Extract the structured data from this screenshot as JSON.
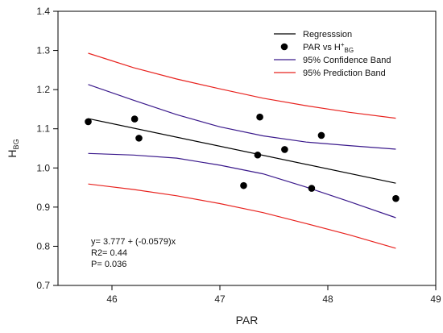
{
  "chart_data": {
    "type": "scatter",
    "title": "",
    "xlabel": "PAR",
    "ylabel": "H",
    "ylabel_sub": "BG",
    "xlim": [
      45.5,
      49
    ],
    "ylim": [
      0.7,
      1.4
    ],
    "x_ticks": [
      46,
      47,
      48,
      49
    ],
    "x_tick_labels": [
      "46",
      "47",
      "48",
      "49"
    ],
    "y_ticks": [
      0.7,
      0.8,
      0.9,
      1.0,
      1.1,
      1.2,
      1.3,
      1.4
    ],
    "y_tick_labels": [
      "0.7",
      "0.8",
      "0.9",
      "1.0",
      "1.1",
      "1.2",
      "1.3",
      "1.4"
    ],
    "grid": false,
    "legend_position": "top-right",
    "legend": [
      {
        "label": "Regresssion",
        "kind": "line",
        "color": "#000000"
      },
      {
        "label": "PAR vs H",
        "label_sup": "+",
        "label_sub": "BG",
        "kind": "marker",
        "color": "#000000"
      },
      {
        "label": "95% Confidence Band",
        "kind": "line",
        "color": "#3b1a8c"
      },
      {
        "label": "95% Prediction Band",
        "kind": "line",
        "color": "#e8231f"
      }
    ],
    "series": [
      {
        "name": "PAR vs H+BG",
        "kind": "scatter",
        "color": "#000000",
        "points": [
          [
            45.78,
            1.118
          ],
          [
            46.21,
            1.125
          ],
          [
            46.25,
            1.076
          ],
          [
            47.22,
            0.955
          ],
          [
            47.35,
            1.033
          ],
          [
            47.37,
            1.13
          ],
          [
            47.6,
            1.047
          ],
          [
            47.85,
            0.948
          ],
          [
            47.94,
            1.083
          ],
          [
            48.63,
            0.922
          ]
        ]
      },
      {
        "name": "Regresssion",
        "kind": "line",
        "color": "#000000",
        "points": [
          [
            45.78,
            1.126
          ],
          [
            48.63,
            0.961
          ]
        ]
      },
      {
        "name": "95% Confidence Band",
        "kind": "line",
        "color": "#3b1a8c",
        "points": [
          [
            45.78,
            1.213
          ],
          [
            46.2,
            1.173
          ],
          [
            46.6,
            1.136
          ],
          [
            47.0,
            1.105
          ],
          [
            47.4,
            1.082
          ],
          [
            47.8,
            1.066
          ],
          [
            48.2,
            1.057
          ],
          [
            48.63,
            1.048
          ]
        ]
      },
      {
        "name": "95% Confidence Band",
        "kind": "line",
        "color": "#3b1a8c",
        "points": [
          [
            45.78,
            1.037
          ],
          [
            46.2,
            1.033
          ],
          [
            46.6,
            1.025
          ],
          [
            47.0,
            1.007
          ],
          [
            47.4,
            0.985
          ],
          [
            47.8,
            0.951
          ],
          [
            48.2,
            0.914
          ],
          [
            48.63,
            0.873
          ]
        ]
      },
      {
        "name": "95% Prediction Band",
        "kind": "line",
        "color": "#e8231f",
        "points": [
          [
            45.78,
            1.293
          ],
          [
            46.2,
            1.256
          ],
          [
            46.6,
            1.227
          ],
          [
            47.0,
            1.202
          ],
          [
            47.4,
            1.178
          ],
          [
            47.8,
            1.159
          ],
          [
            48.2,
            1.142
          ],
          [
            48.63,
            1.127
          ]
        ]
      },
      {
        "name": "95% Prediction Band",
        "kind": "line",
        "color": "#e8231f",
        "points": [
          [
            45.78,
            0.959
          ],
          [
            46.2,
            0.945
          ],
          [
            46.6,
            0.929
          ],
          [
            47.0,
            0.909
          ],
          [
            47.4,
            0.886
          ],
          [
            47.8,
            0.858
          ],
          [
            48.2,
            0.829
          ],
          [
            48.63,
            0.795
          ]
        ]
      }
    ],
    "annotations": [
      "y= 3.777 + (-0.0579)x",
      "R2= 0.44",
      "P= 0.036"
    ]
  }
}
